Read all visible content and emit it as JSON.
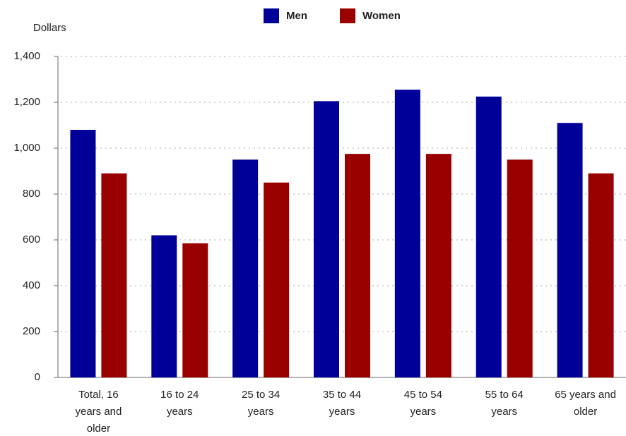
{
  "chart_data": {
    "type": "bar",
    "y_label": "Dollars",
    "categories": [
      "Total, 16 years and older",
      "16 to 24 years",
      "25 to 34 years",
      "35 to 44 years",
      "45 to 54 years",
      "55 to 64 years",
      "65 years and older"
    ],
    "series": [
      {
        "name": "Men",
        "color": "#000099",
        "values": [
          1080,
          620,
          950,
          1205,
          1255,
          1225,
          1110
        ]
      },
      {
        "name": "Women",
        "color": "#990000",
        "values": [
          890,
          585,
          850,
          975,
          975,
          950,
          890
        ]
      }
    ],
    "ylim": [
      0,
      1400
    ],
    "yticks": [
      0,
      200,
      400,
      600,
      800,
      {
        "value": 1000,
        "label": "1,000"
      },
      {
        "value": 1200,
        "label": "1,200"
      },
      {
        "value": 1400,
        "label": "1,400"
      }
    ],
    "grid": true,
    "legend": "top"
  }
}
